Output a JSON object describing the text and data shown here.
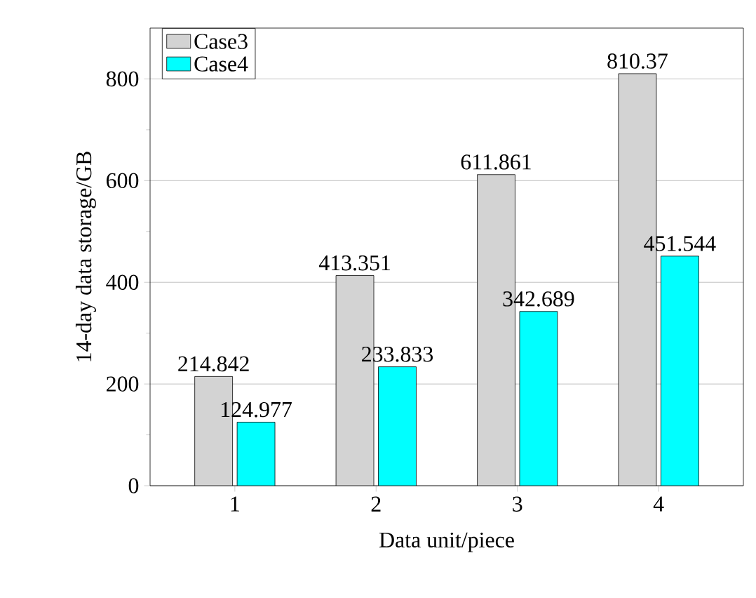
{
  "chart_data": {
    "type": "bar",
    "xlabel": "Data unit/piece",
    "ylabel": "14-day data storage/GB",
    "categories": [
      "1",
      "2",
      "3",
      "4"
    ],
    "series": [
      {
        "name": "Case3",
        "color": "#d3d3d3",
        "values": [
          214.842,
          413.351,
          611.861,
          810.37
        ]
      },
      {
        "name": "Case4",
        "color": "#00ffff",
        "values": [
          124.977,
          233.833,
          342.689,
          451.544
        ]
      }
    ],
    "ylim": [
      0,
      900
    ],
    "yticks": [
      0,
      200,
      400,
      600,
      800
    ],
    "grid": "y",
    "legend": "top left",
    "data_labels": true
  }
}
